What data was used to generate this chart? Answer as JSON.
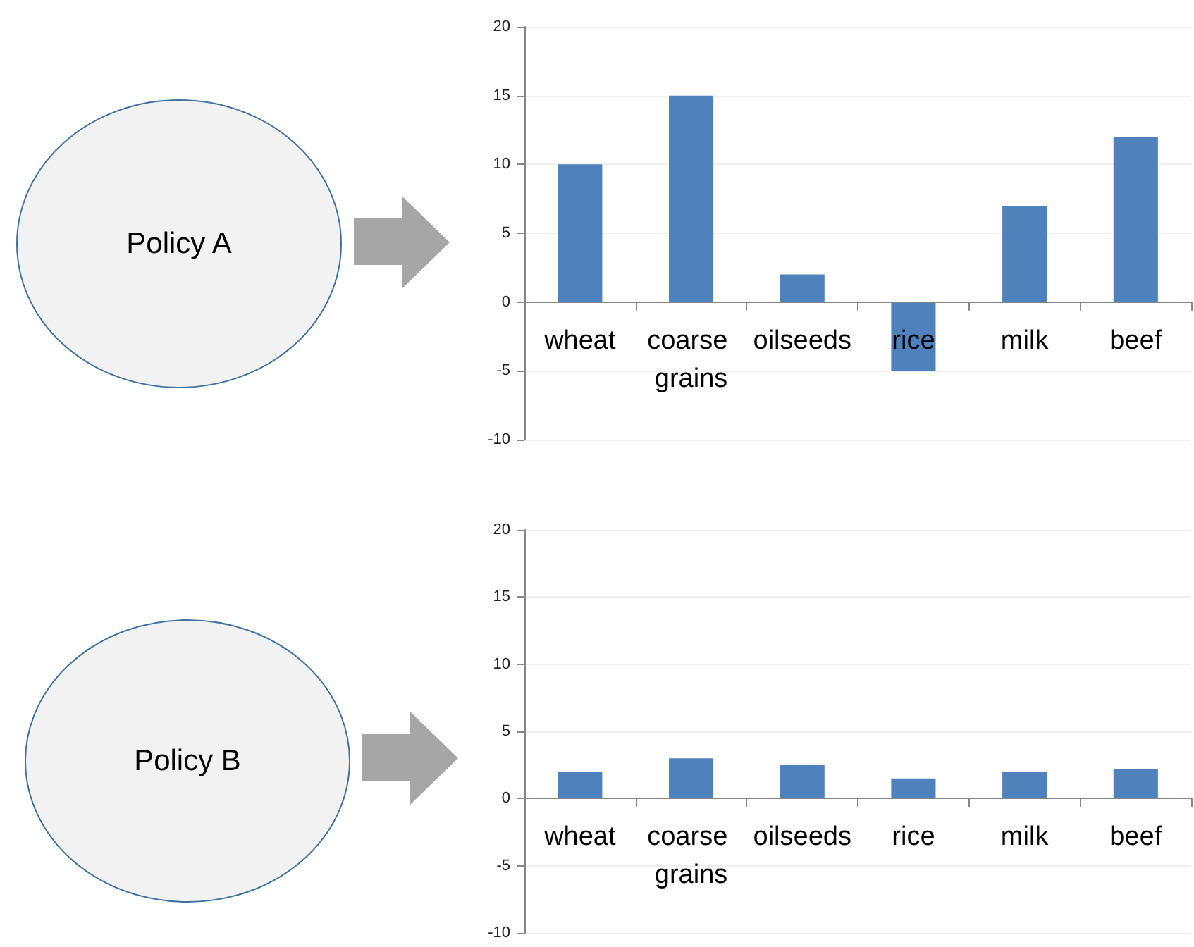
{
  "chart_data": [
    {
      "type": "other",
      "title": "Policy A"
    },
    {
      "type": "bar",
      "categories": [
        "wheat",
        "coarse grains",
        "oilseeds",
        "rice",
        "milk",
        "beef"
      ],
      "values": [
        10,
        15,
        2,
        -5,
        7,
        12
      ],
      "color": "#4f81bd",
      "ylim": [
        -10,
        20
      ],
      "yticks": [
        -10,
        -5,
        0,
        5,
        10,
        15,
        20
      ],
      "grid": "y"
    },
    {
      "type": "other",
      "title": "Policy B"
    },
    {
      "type": "bar",
      "categories": [
        "wheat",
        "coarse grains",
        "oilseeds",
        "rice",
        "milk",
        "beef"
      ],
      "values": [
        2,
        3,
        2.5,
        1.5,
        2,
        2.2
      ],
      "color": "#4f81bd",
      "ylim": [
        -10,
        20
      ],
      "yticks": [
        -10,
        -5,
        0,
        5,
        10,
        15,
        20
      ],
      "grid": "y"
    }
  ]
}
